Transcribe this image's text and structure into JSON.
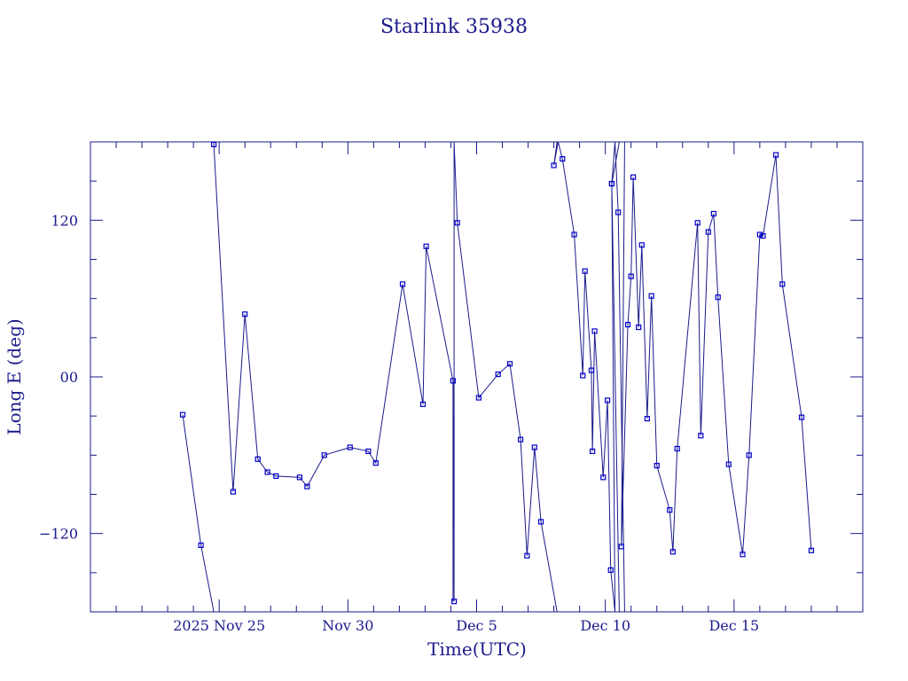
{
  "chart_data": {
    "type": "line",
    "title": "Starlink 35938",
    "xlabel": "Time(UTC)",
    "ylabel": "Long E (deg)",
    "xlim": [
      "2025-11-20T00:00",
      "2025-12-20T00:00"
    ],
    "ylim": [
      -180,
      180
    ],
    "grid": false,
    "x_ticks": [
      {
        "t": "2025-11-25T00:00",
        "label": "2025 Nov 25"
      },
      {
        "t": "2025-11-30T00:00",
        "label": "Nov 30"
      },
      {
        "t": "2025-12-05T00:00",
        "label": "Dec  5"
      },
      {
        "t": "2025-12-10T00:00",
        "label": "Dec 10"
      },
      {
        "t": "2025-12-15T00:00",
        "label": "Dec 15"
      }
    ],
    "y_ticks": [
      {
        "v": 120,
        "label": "120"
      },
      {
        "v": 0,
        "label": "00"
      },
      {
        "v": -120,
        "label": "−120"
      }
    ],
    "colors": {
      "axis": "#1a1a8c",
      "line": "#1a1a8c",
      "marker": "#0000cc"
    },
    "series": [
      {
        "points": [
          {
            "t": "2025-11-23T14:00",
            "lon": -29
          },
          {
            "t": "2025-11-24T07:00",
            "lon": -129
          },
          {
            "t": "2025-11-24T19:00",
            "lon": -180
          },
          {
            "t": "2025-11-24T19:00",
            "lon": 180
          },
          {
            "t": "2025-11-24T19:00",
            "lon": 178
          },
          {
            "t": "2025-11-25T13:00",
            "lon": -88
          },
          {
            "t": "2025-11-26T00:00",
            "lon": 48
          },
          {
            "t": "2025-11-26T12:00",
            "lon": -63
          },
          {
            "t": "2025-11-26T21:00",
            "lon": -73
          },
          {
            "t": "2025-11-27T05:00",
            "lon": -76
          },
          {
            "t": "2025-11-28T03:00",
            "lon": -77
          },
          {
            "t": "2025-11-28T10:00",
            "lon": -84
          },
          {
            "t": "2025-11-29T02:00",
            "lon": -60
          },
          {
            "t": "2025-11-30T02:00",
            "lon": -54
          },
          {
            "t": "2025-11-30T19:00",
            "lon": -57
          },
          {
            "t": "2025-12-01T02:00",
            "lon": -66
          },
          {
            "t": "2025-12-02T03:00",
            "lon": 71
          },
          {
            "t": "2025-12-02T22:00",
            "lon": -21
          },
          {
            "t": "2025-12-03T01:00",
            "lon": 100
          },
          {
            "t": "2025-12-04T02:00",
            "lon": -3
          },
          {
            "t": "2025-12-04T03:00",
            "lon": -172
          },
          {
            "t": "2025-12-04T03:00",
            "lon": 180
          },
          {
            "t": "2025-12-04T06:00",
            "lon": 118
          },
          {
            "t": "2025-12-05T02:00",
            "lon": -16
          },
          {
            "t": "2025-12-05T20:00",
            "lon": 2
          },
          {
            "t": "2025-12-06T07:00",
            "lon": 10
          },
          {
            "t": "2025-12-06T17:00",
            "lon": -48
          },
          {
            "t": "2025-12-06T23:00",
            "lon": -137
          },
          {
            "t": "2025-12-07T06:00",
            "lon": -54
          },
          {
            "t": "2025-12-07T12:00",
            "lon": -111
          },
          {
            "t": "2025-12-08T03:00",
            "lon": -180
          },
          {
            "t": "2025-12-08T03:00",
            "lon": 180
          },
          {
            "t": "2025-12-08T00:00",
            "lon": 162
          },
          {
            "t": "2025-12-08T04:00",
            "lon": 180
          },
          {
            "t": "2025-12-08T08:00",
            "lon": 167
          },
          {
            "t": "2025-12-08T19:00",
            "lon": 109
          },
          {
            "t": "2025-12-09T03:00",
            "lon": 1
          },
          {
            "t": "2025-12-09T05:00",
            "lon": 81
          },
          {
            "t": "2025-12-09T11:00",
            "lon": 5
          },
          {
            "t": "2025-12-09T12:00",
            "lon": -57
          },
          {
            "t": "2025-12-09T14:00",
            "lon": 35
          },
          {
            "t": "2025-12-09T22:00",
            "lon": -77
          },
          {
            "t": "2025-12-10T02:00",
            "lon": -18
          },
          {
            "t": "2025-12-10T05:00",
            "lon": -148
          },
          {
            "t": "2025-12-10T09:00",
            "lon": -180
          },
          {
            "t": "2025-12-10T09:00",
            "lon": 180
          },
          {
            "t": "2025-12-10T06:00",
            "lon": 148
          },
          {
            "t": "2025-12-10T13:00",
            "lon": -180
          },
          {
            "t": "2025-12-10T13:00",
            "lon": 180
          },
          {
            "t": "2025-12-10T06:00",
            "lon": 148
          },
          {
            "t": "2025-12-10T09:00",
            "lon": -180
          },
          {
            "t": "2025-12-10T09:00",
            "lon": 180
          },
          {
            "t": "2025-12-10T12:00",
            "lon": 126
          },
          {
            "t": "2025-12-10T18:00",
            "lon": -180
          },
          {
            "t": "2025-12-10T18:00",
            "lon": 180
          },
          {
            "t": "2025-12-10T15:00",
            "lon": -130
          },
          {
            "t": "2025-12-10T21:00",
            "lon": 40
          },
          {
            "t": "2025-12-11T00:00",
            "lon": 77
          },
          {
            "t": "2025-12-11T02:00",
            "lon": 153
          },
          {
            "t": "2025-12-11T07:00",
            "lon": 38
          },
          {
            "t": "2025-12-11T10:00",
            "lon": 101
          },
          {
            "t": "2025-12-11T15:00",
            "lon": -32
          },
          {
            "t": "2025-12-11T19:00",
            "lon": 62
          },
          {
            "t": "2025-12-12T00:00",
            "lon": -68
          },
          {
            "t": "2025-12-12T12:00",
            "lon": -102
          },
          {
            "t": "2025-12-12T15:00",
            "lon": -134
          },
          {
            "t": "2025-12-12T19:00",
            "lon": -55
          },
          {
            "t": "2025-12-13T14:00",
            "lon": 118
          },
          {
            "t": "2025-12-13T17:00",
            "lon": -45
          },
          {
            "t": "2025-12-14T00:00",
            "lon": 111
          },
          {
            "t": "2025-12-14T05:00",
            "lon": 125
          },
          {
            "t": "2025-12-14T09:00",
            "lon": 61
          },
          {
            "t": "2025-12-14T19:00",
            "lon": -67
          },
          {
            "t": "2025-12-15T08:00",
            "lon": -136
          },
          {
            "t": "2025-12-15T14:00",
            "lon": -60
          },
          {
            "t": "2025-12-16T00:00",
            "lon": 109
          },
          {
            "t": "2025-12-16T03:00",
            "lon": 108
          },
          {
            "t": "2025-12-16T15:00",
            "lon": 170
          },
          {
            "t": "2025-12-16T21:00",
            "lon": 71
          },
          {
            "t": "2025-12-17T15:00",
            "lon": -31
          },
          {
            "t": "2025-12-18T00:00",
            "lon": -133
          }
        ],
        "vertical_segments": [
          {
            "t": "2025-12-04T02:00",
            "from": -3,
            "to": -172
          }
        ]
      }
    ]
  }
}
